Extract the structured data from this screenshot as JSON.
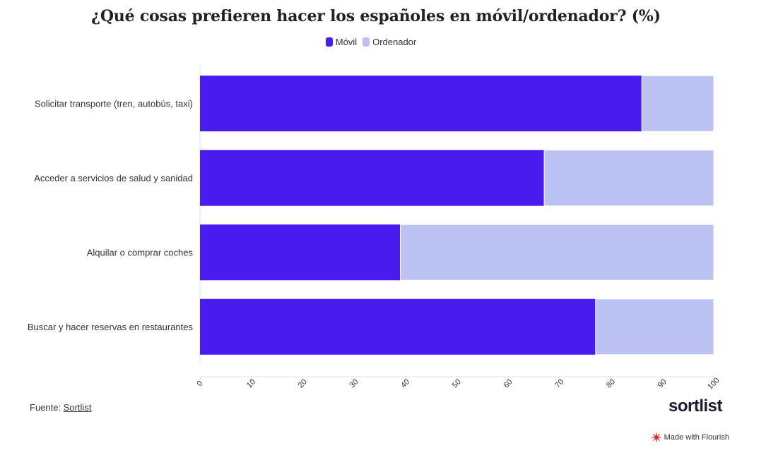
{
  "title": "¿Qué cosas prefieren hacer los españoles en móvil/ordenador? (%)",
  "legend": [
    {
      "label": "Móvil",
      "color": "#4a1bef"
    },
    {
      "label": "Ordenador",
      "color": "#bcc2f4"
    }
  ],
  "footer": {
    "source_prefix": "Fuente: ",
    "source_link": "Sortlist",
    "logo": "sortlist",
    "credit": "Made with Flourish"
  },
  "chart_data": {
    "type": "bar",
    "orientation": "horizontal",
    "stacked": true,
    "categories": [
      "Solicitar transporte (tren, autobús, taxi)",
      "Acceder a servicios de salud y sanidad",
      "Alquilar o comprar coches",
      "Buscar y hacer reservas en restaurantes"
    ],
    "series": [
      {
        "name": "Móvil",
        "color": "#4a1bef",
        "values": [
          86,
          67,
          39,
          77
        ]
      },
      {
        "name": "Ordenador",
        "color": "#bcc2f4",
        "values": [
          14,
          33,
          61,
          23
        ]
      }
    ],
    "xlim": [
      0,
      100
    ],
    "xticks": [
      0,
      10,
      20,
      30,
      40,
      50,
      60,
      70,
      80,
      90,
      100
    ],
    "title": "¿Qué cosas prefieren hacer los españoles en móvil/ordenador? (%)",
    "xlabel": "",
    "ylabel": "",
    "grid": false,
    "legend_position": "top-center"
  }
}
